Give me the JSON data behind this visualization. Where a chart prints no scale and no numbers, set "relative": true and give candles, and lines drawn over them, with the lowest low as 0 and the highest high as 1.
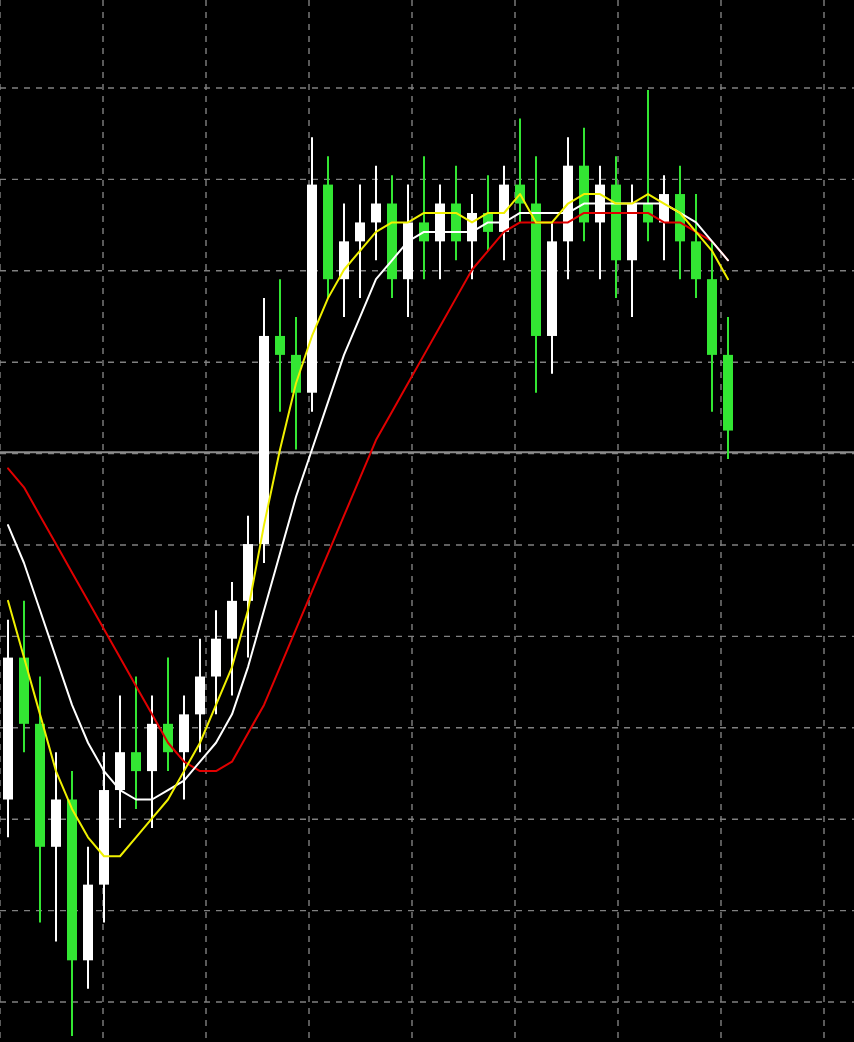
{
  "chart_data": {
    "type": "candlestick",
    "relative": true,
    "grid": true,
    "categories": [
      null,
      null,
      null,
      null,
      null,
      null,
      null,
      null,
      null,
      null,
      null,
      null,
      null,
      null,
      null,
      null,
      null,
      null,
      null,
      null,
      null,
      null,
      null,
      null,
      null,
      null,
      null,
      null,
      null,
      null,
      null,
      null,
      null,
      null,
      null,
      null,
      null,
      null,
      null,
      null,
      null,
      null,
      null,
      null,
      null,
      null
    ],
    "ohlc": [
      [
        0.25,
        0.44,
        0.21,
        0.4
      ],
      [
        0.4,
        0.46,
        0.3,
        0.33
      ],
      [
        0.33,
        0.38,
        0.12,
        0.2
      ],
      [
        0.2,
        0.3,
        0.1,
        0.25
      ],
      [
        0.25,
        0.28,
        0.0,
        0.08
      ],
      [
        0.08,
        0.2,
        0.05,
        0.16
      ],
      [
        0.16,
        0.3,
        0.12,
        0.26
      ],
      [
        0.26,
        0.36,
        0.22,
        0.3
      ],
      [
        0.3,
        0.38,
        0.24,
        0.28
      ],
      [
        0.28,
        0.36,
        0.22,
        0.33
      ],
      [
        0.33,
        0.4,
        0.28,
        0.3
      ],
      [
        0.3,
        0.36,
        0.25,
        0.34
      ],
      [
        0.34,
        0.42,
        0.3,
        0.38
      ],
      [
        0.38,
        0.45,
        0.34,
        0.42
      ],
      [
        0.42,
        0.48,
        0.36,
        0.46
      ],
      [
        0.46,
        0.55,
        0.4,
        0.52
      ],
      [
        0.52,
        0.78,
        0.5,
        0.74
      ],
      [
        0.74,
        0.8,
        0.66,
        0.72
      ],
      [
        0.72,
        0.76,
        0.62,
        0.68
      ],
      [
        0.68,
        0.95,
        0.66,
        0.9
      ],
      [
        0.9,
        0.93,
        0.78,
        0.8
      ],
      [
        0.8,
        0.88,
        0.76,
        0.84
      ],
      [
        0.84,
        0.9,
        0.78,
        0.86
      ],
      [
        0.86,
        0.92,
        0.82,
        0.88
      ],
      [
        0.88,
        0.91,
        0.78,
        0.8
      ],
      [
        0.8,
        0.9,
        0.76,
        0.86
      ],
      [
        0.86,
        0.93,
        0.8,
        0.84
      ],
      [
        0.84,
        0.9,
        0.8,
        0.88
      ],
      [
        0.88,
        0.92,
        0.82,
        0.84
      ],
      [
        0.84,
        0.89,
        0.8,
        0.87
      ],
      [
        0.87,
        0.91,
        0.83,
        0.85
      ],
      [
        0.85,
        0.92,
        0.82,
        0.9
      ],
      [
        0.9,
        0.97,
        0.86,
        0.88
      ],
      [
        0.88,
        0.93,
        0.68,
        0.74
      ],
      [
        0.74,
        0.86,
        0.7,
        0.84
      ],
      [
        0.84,
        0.95,
        0.8,
        0.92
      ],
      [
        0.92,
        0.96,
        0.84,
        0.86
      ],
      [
        0.86,
        0.92,
        0.8,
        0.9
      ],
      [
        0.9,
        0.93,
        0.78,
        0.82
      ],
      [
        0.82,
        0.9,
        0.76,
        0.88
      ],
      [
        0.88,
        1.0,
        0.84,
        0.86
      ],
      [
        0.86,
        0.91,
        0.82,
        0.89
      ],
      [
        0.89,
        0.92,
        0.8,
        0.84
      ],
      [
        0.84,
        0.89,
        0.78,
        0.8
      ],
      [
        0.8,
        0.84,
        0.66,
        0.72
      ],
      [
        0.72,
        0.76,
        0.61,
        0.64
      ]
    ],
    "colors": [
      "#ffffff",
      "#33e633",
      "#33e633",
      "#ffffff",
      "#33e633",
      "#ffffff",
      "#ffffff",
      "#ffffff",
      "#33e633",
      "#ffffff",
      "#33e633",
      "#ffffff",
      "#ffffff",
      "#ffffff",
      "#ffffff",
      "#ffffff",
      "#ffffff",
      "#33e633",
      "#33e633",
      "#ffffff",
      "#33e633",
      "#ffffff",
      "#ffffff",
      "#ffffff",
      "#33e633",
      "#ffffff",
      "#33e633",
      "#ffffff",
      "#33e633",
      "#ffffff",
      "#33e633",
      "#ffffff",
      "#33e633",
      "#33e633",
      "#ffffff",
      "#ffffff",
      "#33e633",
      "#ffffff",
      "#33e633",
      "#ffffff",
      "#33e633",
      "#ffffff",
      "#33e633",
      "#33e633",
      "#33e633",
      "#33e633"
    ],
    "series": [
      {
        "type": "line",
        "color": "#e00000",
        "values": [
          0.6,
          0.58,
          0.55,
          0.52,
          0.49,
          0.46,
          0.43,
          0.4,
          0.37,
          0.34,
          0.31,
          0.29,
          0.28,
          0.28,
          0.29,
          0.32,
          0.35,
          0.39,
          0.43,
          0.47,
          0.51,
          0.55,
          0.59,
          0.63,
          0.66,
          0.69,
          0.72,
          0.75,
          0.78,
          0.81,
          0.83,
          0.85,
          0.86,
          0.86,
          0.86,
          0.86,
          0.87,
          0.87,
          0.87,
          0.87,
          0.87,
          0.86,
          0.86,
          0.85,
          0.84,
          0.82
        ]
      },
      {
        "type": "line",
        "color": "#ffffff",
        "values": [
          0.54,
          0.5,
          0.45,
          0.4,
          0.35,
          0.31,
          0.28,
          0.26,
          0.25,
          0.25,
          0.26,
          0.27,
          0.29,
          0.31,
          0.34,
          0.39,
          0.45,
          0.51,
          0.57,
          0.62,
          0.67,
          0.72,
          0.76,
          0.8,
          0.82,
          0.84,
          0.85,
          0.85,
          0.85,
          0.85,
          0.86,
          0.86,
          0.87,
          0.87,
          0.87,
          0.87,
          0.88,
          0.88,
          0.88,
          0.88,
          0.88,
          0.88,
          0.87,
          0.86,
          0.84,
          0.82
        ]
      },
      {
        "type": "line",
        "color": "#f0f000",
        "values": [
          0.46,
          0.4,
          0.34,
          0.28,
          0.24,
          0.21,
          0.19,
          0.19,
          0.21,
          0.23,
          0.25,
          0.28,
          0.31,
          0.35,
          0.39,
          0.45,
          0.54,
          0.62,
          0.69,
          0.74,
          0.78,
          0.81,
          0.83,
          0.85,
          0.86,
          0.86,
          0.87,
          0.87,
          0.87,
          0.86,
          0.87,
          0.87,
          0.89,
          0.86,
          0.86,
          0.88,
          0.89,
          0.89,
          0.88,
          0.88,
          0.89,
          0.88,
          0.87,
          0.85,
          0.83,
          0.8
        ]
      }
    ],
    "ref_lines": [
      {
        "axis": "y",
        "value": 0.617,
        "color": "#8c8c8c"
      }
    ]
  }
}
